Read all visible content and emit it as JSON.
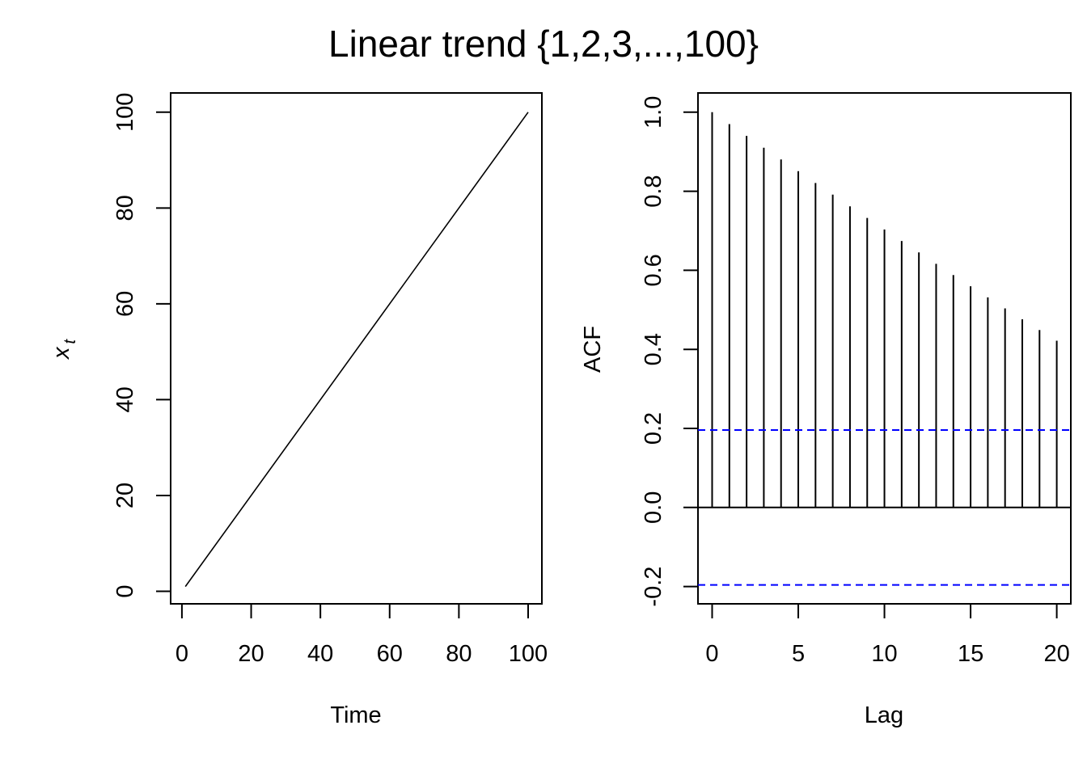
{
  "figure": {
    "title": "Linear trend {1,2,3,...,100}"
  },
  "chart_data": [
    {
      "type": "line",
      "title": "",
      "xlabel": "Time",
      "ylabel_main": "x",
      "ylabel_subscript": "t",
      "xlim": [
        1,
        100
      ],
      "ylim": [
        1,
        100
      ],
      "x_ticks": [
        0,
        20,
        40,
        60,
        80,
        100
      ],
      "y_ticks": [
        0,
        20,
        40,
        60,
        80,
        100
      ],
      "x_tick_labels": [
        "0",
        "20",
        "40",
        "60",
        "80",
        "100"
      ],
      "y_tick_labels": [
        "0",
        "20",
        "40",
        "60",
        "80",
        "100"
      ],
      "series": [
        {
          "x": [
            1,
            100
          ],
          "y": [
            1,
            100
          ],
          "color": "#000000",
          "note_points": "x_t = t for t = 1..100"
        }
      ],
      "grid": false
    },
    {
      "type": "bar",
      "title": "",
      "xlabel": "Lag",
      "ylabel": "ACF",
      "xlim": [
        0,
        20
      ],
      "ylim": [
        -0.2,
        1.0
      ],
      "x_ticks": [
        0,
        5,
        10,
        15,
        20
      ],
      "y_ticks": [
        -0.2,
        0.0,
        0.2,
        0.4,
        0.6,
        0.8,
        1.0
      ],
      "x_tick_labels": [
        "0",
        "5",
        "10",
        "15",
        "20"
      ],
      "y_tick_labels": [
        "-0.2",
        "0.0",
        "0.2",
        "0.4",
        "0.6",
        "0.8",
        "1.0"
      ],
      "lags": [
        0,
        1,
        2,
        3,
        4,
        5,
        6,
        7,
        8,
        9,
        10,
        11,
        12,
        13,
        14,
        15,
        16,
        17,
        18,
        19,
        20
      ],
      "acf": [
        1.0,
        0.97,
        0.9401,
        0.9102,
        0.8804,
        0.8507,
        0.821,
        0.7914,
        0.7619,
        0.7325,
        0.7033,
        0.6742,
        0.6453,
        0.6165,
        0.588,
        0.5596,
        0.5316,
        0.5037,
        0.4762,
        0.4489,
        0.422
      ],
      "confidence_bounds": [
        0.196,
        -0.196
      ],
      "confidence_color": "#0000ff",
      "grid": false
    }
  ]
}
